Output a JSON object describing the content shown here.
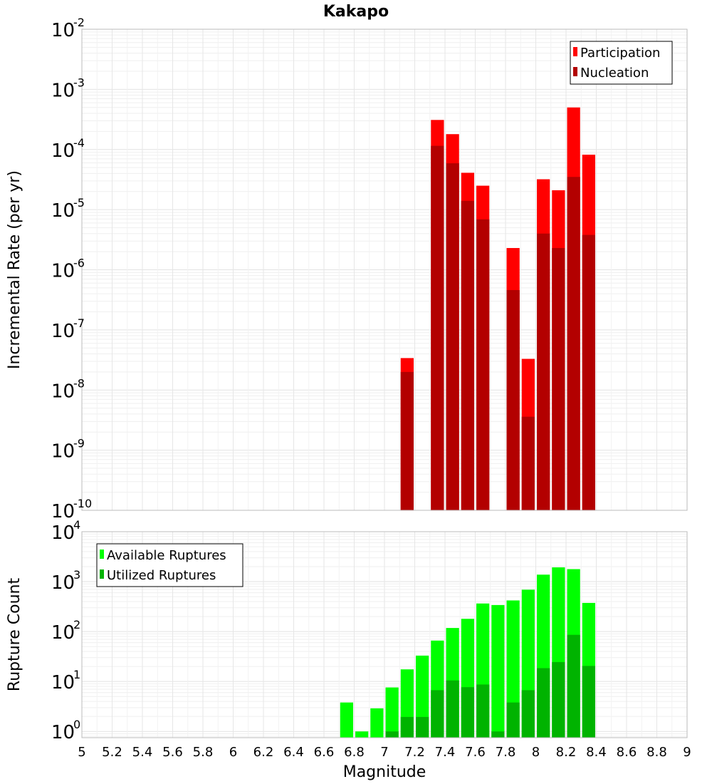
{
  "chart_data": {
    "title": "Kakapo",
    "xlabel": "Magnitude",
    "xlim": [
      5,
      9
    ],
    "xticks": [
      "5",
      "5.2",
      "5.4",
      "5.6",
      "5.8",
      "6",
      "6.2",
      "6.4",
      "6.6",
      "6.8",
      "7",
      "7.2",
      "7.4",
      "7.6",
      "7.8",
      "8",
      "8.2",
      "8.4",
      "8.6",
      "8.8",
      "9"
    ],
    "bin_width": 0.1,
    "panels": [
      {
        "type": "bar",
        "ylabel": "Incremental Rate (per yr)",
        "yscale": "log",
        "ylim": [
          1e-10,
          0.01
        ],
        "yticks": [
          {
            "base": "10",
            "exp": "-10"
          },
          {
            "base": "10",
            "exp": "-9"
          },
          {
            "base": "10",
            "exp": "-8"
          },
          {
            "base": "10",
            "exp": "-7"
          },
          {
            "base": "10",
            "exp": "-6"
          },
          {
            "base": "10",
            "exp": "-5"
          },
          {
            "base": "10",
            "exp": "-4"
          },
          {
            "base": "10",
            "exp": "-3"
          },
          {
            "base": "10",
            "exp": "-2"
          }
        ],
        "legend_position": "top-right",
        "series": [
          {
            "name": "Participation",
            "color": "#ff0000",
            "points": [
              [
                7.15,
                3.4e-08
              ],
              [
                7.35,
                0.00031
              ],
              [
                7.45,
                0.00018
              ],
              [
                7.55,
                4.1e-05
              ],
              [
                7.65,
                2.5e-05
              ],
              [
                7.85,
                2.3e-06
              ],
              [
                7.95,
                3.3e-08
              ],
              [
                8.05,
                3.2e-05
              ],
              [
                8.15,
                2.1e-05
              ],
              [
                8.25,
                0.0005
              ],
              [
                8.35,
                8.2e-05
              ]
            ]
          },
          {
            "name": "Nucleation",
            "color": "#b30000",
            "points": [
              [
                7.15,
                2e-08
              ],
              [
                7.35,
                0.000115
              ],
              [
                7.45,
                5.9e-05
              ],
              [
                7.55,
                1.4e-05
              ],
              [
                7.65,
                6.9e-06
              ],
              [
                7.85,
                4.6e-07
              ],
              [
                7.95,
                3.6e-09
              ],
              [
                8.05,
                4e-06
              ],
              [
                8.15,
                2.3e-06
              ],
              [
                8.25,
                3.5e-05
              ],
              [
                8.35,
                3.8e-06
              ]
            ]
          }
        ]
      },
      {
        "type": "bar",
        "ylabel": "Rupture Count",
        "yscale": "log",
        "ylim": [
          0.75,
          10000
        ],
        "yticks": [
          {
            "base": "10",
            "exp": "0"
          },
          {
            "base": "10",
            "exp": "1"
          },
          {
            "base": "10",
            "exp": "2"
          },
          {
            "base": "10",
            "exp": "3"
          },
          {
            "base": "10",
            "exp": "4"
          }
        ],
        "legend_position": "top-left",
        "series": [
          {
            "name": "Available Ruptures",
            "color": "#00ff00",
            "points": [
              [
                6.75,
                3.8
              ],
              [
                6.85,
                1.0
              ],
              [
                6.95,
                2.9
              ],
              [
                7.05,
                7.6
              ],
              [
                7.15,
                17.5
              ],
              [
                7.25,
                33
              ],
              [
                7.35,
                66
              ],
              [
                7.45,
                118
              ],
              [
                7.55,
                180
              ],
              [
                7.65,
                365
              ],
              [
                7.75,
                340
              ],
              [
                7.85,
                420
              ],
              [
                7.95,
                690
              ],
              [
                8.05,
                1380
              ],
              [
                8.15,
                1930
              ],
              [
                8.25,
                1780
              ],
              [
                8.35,
                375
              ]
            ]
          },
          {
            "name": "Utilized Ruptures",
            "color": "#00b300",
            "points": [
              [
                7.05,
                1.0
              ],
              [
                7.15,
                1.95
              ],
              [
                7.25,
                1.95
              ],
              [
                7.35,
                6.7
              ],
              [
                7.45,
                10.5
              ],
              [
                7.55,
                7.7
              ],
              [
                7.65,
                8.7
              ],
              [
                7.75,
                1.0
              ],
              [
                7.85,
                3.8
              ],
              [
                7.95,
                6.7
              ],
              [
                8.05,
                18.5
              ],
              [
                8.15,
                24.5
              ],
              [
                8.25,
                86
              ],
              [
                8.35,
                20.5
              ]
            ]
          }
        ]
      }
    ]
  }
}
